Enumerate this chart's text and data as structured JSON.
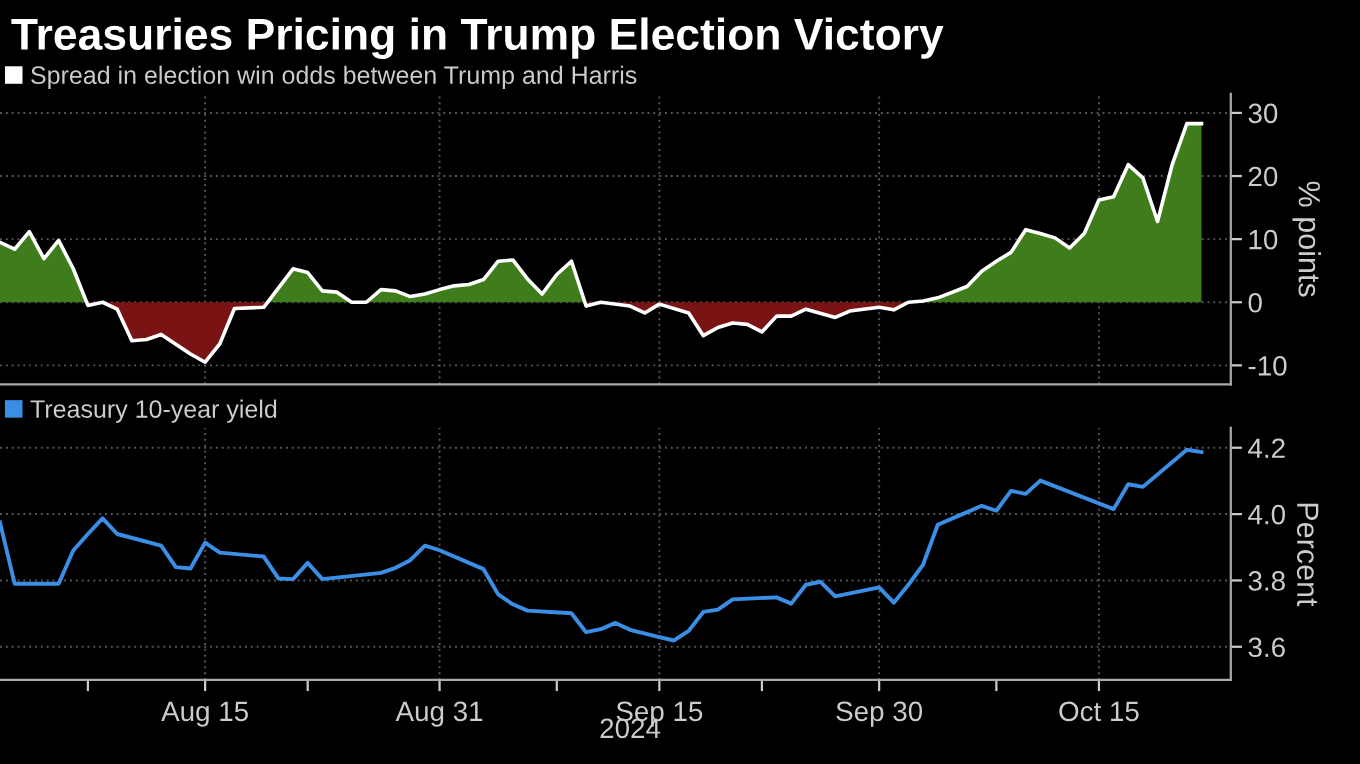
{
  "chart_data": [
    {
      "type": "area",
      "title": "Treasuries Pricing in Trump Election Victory",
      "ylabel": "% points",
      "legend": "top left",
      "grid": true,
      "tick_labels": "y",
      "x": [
        "2024-08-01",
        "2024-08-02",
        "2024-08-03",
        "2024-08-04",
        "2024-08-05",
        "2024-08-06",
        "2024-08-07",
        "2024-08-08",
        "2024-08-09",
        "2024-08-10",
        "2024-08-11",
        "2024-08-12",
        "2024-08-14",
        "2024-08-15",
        "2024-08-16",
        "2024-08-17",
        "2024-08-19",
        "2024-08-21",
        "2024-08-22",
        "2024-08-23",
        "2024-08-24",
        "2024-08-25",
        "2024-08-26",
        "2024-08-27",
        "2024-08-28",
        "2024-08-29",
        "2024-08-30",
        "2024-08-31",
        "2024-09-01",
        "2024-09-02",
        "2024-09-03",
        "2024-09-04",
        "2024-09-05",
        "2024-09-06",
        "2024-09-07",
        "2024-09-08",
        "2024-09-09",
        "2024-09-10",
        "2024-09-11",
        "2024-09-13",
        "2024-09-14",
        "2024-09-15",
        "2024-09-17",
        "2024-09-18",
        "2024-09-19",
        "2024-09-20",
        "2024-09-21",
        "2024-09-22",
        "2024-09-23",
        "2024-09-24",
        "2024-09-25",
        "2024-09-27",
        "2024-09-28",
        "2024-09-30",
        "2024-10-01",
        "2024-10-02",
        "2024-10-03",
        "2024-10-04",
        "2024-10-06",
        "2024-10-07",
        "2024-10-08",
        "2024-10-09",
        "2024-10-10",
        "2024-10-11",
        "2024-10-12",
        "2024-10-13",
        "2024-10-14",
        "2024-10-15",
        "2024-10-16",
        "2024-10-17",
        "2024-10-18",
        "2024-10-19",
        "2024-10-20",
        "2024-10-21",
        "2024-10-22"
      ],
      "series": [
        {
          "name": "Spread in election win odds between Trump and Harris",
          "type": "line",
          "color": "#ffffff",
          "values": [
            9.5,
            8.4,
            11.2,
            6.9,
            9.8,
            5.3,
            -0.5,
            0,
            -1.1,
            -6.1,
            -5.9,
            -5.1,
            -8.2,
            -9.5,
            -6.6,
            -1.0,
            -0.8,
            5.3,
            4.7,
            1.8,
            1.6,
            0,
            0,
            2.0,
            1.8,
            0.9,
            1.3,
            2.0,
            2.6,
            2.8,
            3.6,
            6.5,
            6.7,
            3.7,
            1.3,
            4.4,
            6.5,
            -0.6,
            0,
            -0.6,
            -1.7,
            -0.3,
            -1.7,
            -5.3,
            -4.0,
            -3.3,
            -3.5,
            -4.7,
            -2.2,
            -2.2,
            -1.1,
            -2.4,
            -1.4,
            -0.8,
            -1.2,
            0,
            0.2,
            0.7,
            2.5,
            4.9,
            6.5,
            7.9,
            11.5,
            10.9,
            10.2,
            8.6,
            10.9,
            16.2,
            16.7,
            21.8,
            19.7,
            12.8,
            21.8,
            28.3,
            28.3
          ]
        },
        {
          "type": "area",
          "color": "#3f7d1c",
          "values": [
            9.5,
            8.4,
            11.2,
            6.9,
            9.8,
            5.3,
            null,
            null,
            null,
            null,
            null,
            null,
            null,
            null,
            null,
            null,
            null,
            5.3,
            4.7,
            1.8,
            1.6,
            0,
            0,
            2.0,
            1.8,
            0.9,
            1.3,
            2.0,
            2.6,
            2.8,
            3.6,
            6.5,
            6.7,
            3.7,
            1.3,
            4.4,
            6.5,
            null,
            null,
            null,
            null,
            null,
            null,
            null,
            null,
            null,
            null,
            null,
            null,
            null,
            null,
            null,
            null,
            null,
            null,
            0,
            0.2,
            0.7,
            2.5,
            4.9,
            6.5,
            7.9,
            11.5,
            10.9,
            10.2,
            8.6,
            10.9,
            16.2,
            16.7,
            21.8,
            19.7,
            12.8,
            21.8,
            28.3,
            28.3
          ]
        },
        {
          "type": "area",
          "color": "#7a1414",
          "values": [
            null,
            null,
            null,
            null,
            null,
            null,
            -0.5,
            0,
            -1.1,
            -6.1,
            -5.9,
            -5.1,
            -8.2,
            -9.5,
            -6.6,
            -1.0,
            -0.8,
            null,
            null,
            null,
            null,
            null,
            null,
            null,
            null,
            null,
            null,
            null,
            null,
            null,
            null,
            null,
            null,
            null,
            null,
            null,
            null,
            -0.6,
            0,
            -0.6,
            -1.7,
            -0.3,
            -1.7,
            -5.3,
            -4.0,
            -3.3,
            -3.5,
            -4.7,
            -2.2,
            -2.2,
            -1.1,
            -2.4,
            -1.4,
            -0.8,
            -1.2,
            0,
            null,
            null,
            null,
            null,
            null,
            null,
            null,
            null,
            null,
            null,
            null,
            null,
            null,
            null,
            null,
            null,
            null,
            null,
            null
          ]
        }
      ],
      "xlim": [
        "2024-08-01",
        "2024-10-24"
      ],
      "ylim": [
        -13,
        33
      ],
      "yticks": [
        -10,
        0,
        10,
        20,
        30
      ]
    },
    {
      "type": "line",
      "ylabel": "Percent",
      "xlabel": "2024",
      "legend": "top left",
      "grid": true,
      "x": [
        "2024-08-01",
        "2024-08-02",
        "2024-08-05",
        "2024-08-06",
        "2024-08-07",
        "2024-08-08",
        "2024-08-09",
        "2024-08-12",
        "2024-08-13",
        "2024-08-14",
        "2024-08-15",
        "2024-08-16",
        "2024-08-19",
        "2024-08-20",
        "2024-08-21",
        "2024-08-22",
        "2024-08-23",
        "2024-08-27",
        "2024-08-28",
        "2024-08-29",
        "2024-08-30",
        "2024-08-31",
        "2024-09-03",
        "2024-09-04",
        "2024-09-05",
        "2024-09-06",
        "2024-09-09",
        "2024-09-10",
        "2024-09-11",
        "2024-09-12",
        "2024-09-13",
        "2024-09-15",
        "2024-09-16",
        "2024-09-17",
        "2024-09-18",
        "2024-09-19",
        "2024-09-20",
        "2024-09-23",
        "2024-09-24",
        "2024-09-25",
        "2024-09-26",
        "2024-09-27",
        "2024-09-30",
        "2024-10-01",
        "2024-10-02",
        "2024-10-03",
        "2024-10-04",
        "2024-10-06",
        "2024-10-07",
        "2024-10-08",
        "2024-10-09",
        "2024-10-10",
        "2024-10-11",
        "2024-10-16",
        "2024-10-17",
        "2024-10-18",
        "2024-10-21",
        "2024-10-22"
      ],
      "series": [
        {
          "name": "Treasury 10-year yield",
          "color": "#3b8ee6",
          "values": [
            3.975,
            3.79,
            3.79,
            3.89,
            3.94,
            3.987,
            3.94,
            3.905,
            3.84,
            3.836,
            3.914,
            3.884,
            3.872,
            3.806,
            3.804,
            3.853,
            3.804,
            3.823,
            3.838,
            3.861,
            3.905,
            3.891,
            3.834,
            3.758,
            3.728,
            3.709,
            3.701,
            3.644,
            3.653,
            3.672,
            3.651,
            3.629,
            3.619,
            3.648,
            3.705,
            3.712,
            3.743,
            3.749,
            3.73,
            3.787,
            3.796,
            3.752,
            3.779,
            3.733,
            3.787,
            3.848,
            3.968,
            4.006,
            4.025,
            4.01,
            4.07,
            4.061,
            4.101,
            4.015,
            4.09,
            4.082,
            4.194,
            4.187
          ]
        }
      ],
      "xlim": [
        "2024-08-01",
        "2024-10-24"
      ],
      "xticks": [
        {
          "value": "2024-08-07",
          "label": null
        },
        {
          "value": "2024-08-15",
          "label": "Aug 15"
        },
        {
          "value": "2024-08-22",
          "label": null
        },
        {
          "value": "2024-08-31",
          "label": "Aug 31"
        },
        {
          "value": "2024-09-08",
          "label": null
        },
        {
          "value": "2024-09-15",
          "label": "Sep 15"
        },
        {
          "value": "2024-09-22",
          "label": null
        },
        {
          "value": "2024-09-30",
          "label": "Sep 30"
        },
        {
          "value": "2024-10-08",
          "label": null
        },
        {
          "value": "2024-10-15",
          "label": "Oct 15"
        }
      ],
      "ylim": [
        3.5,
        4.26
      ],
      "yticks": [
        3.6,
        3.8,
        {
          "value": 4.0,
          "label": "4.0"
        },
        4.2
      ]
    }
  ]
}
